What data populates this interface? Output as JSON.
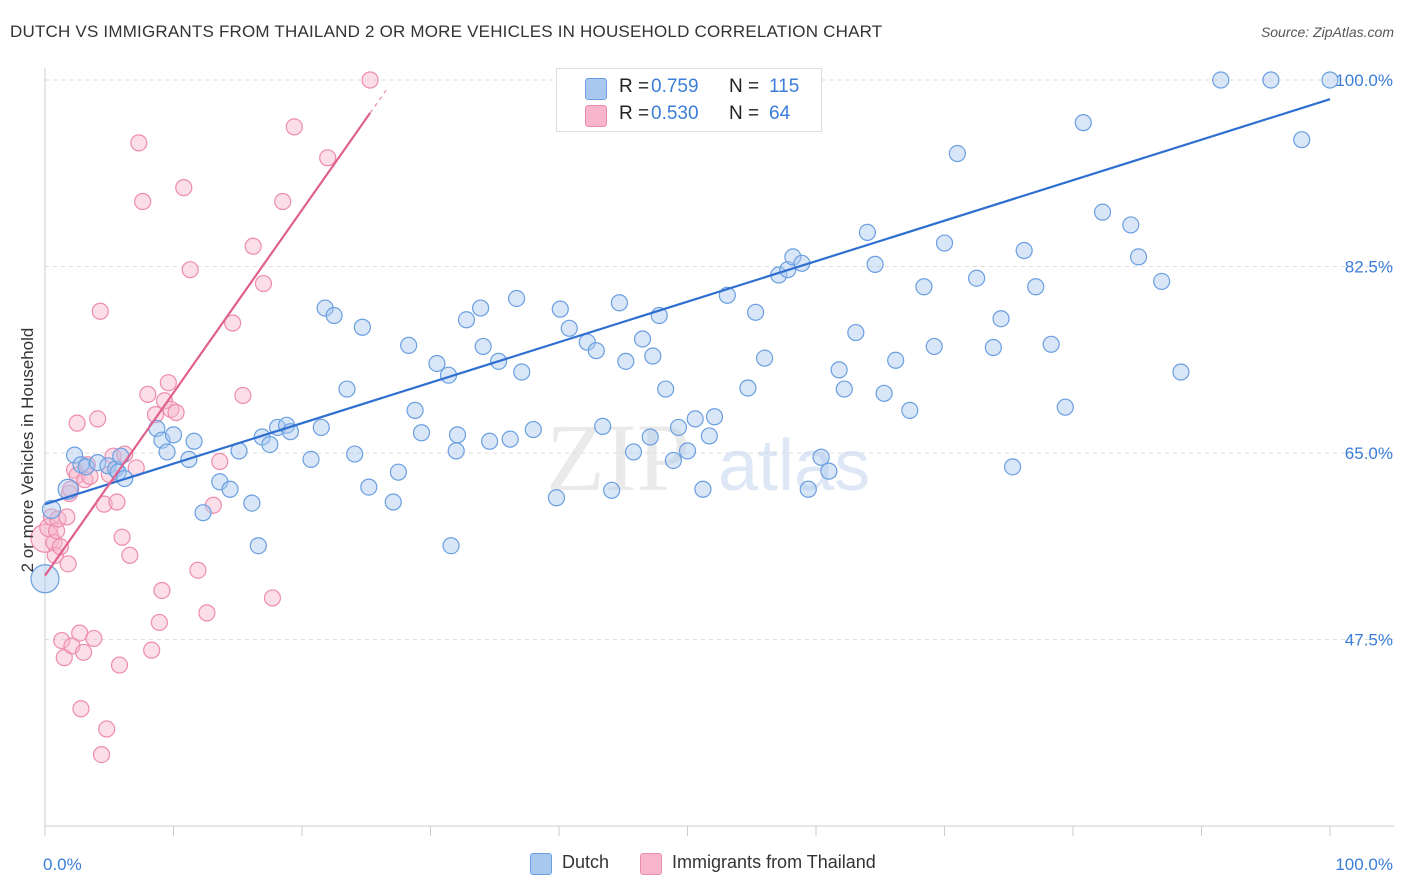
{
  "title": "DUTCH VS IMMIGRANTS FROM THAILAND 2 OR MORE VEHICLES IN HOUSEHOLD CORRELATION CHART",
  "source": "Source: ZipAtlas.com",
  "watermark": {
    "zip": "ZIP",
    "atlas": "atlas"
  },
  "colors": {
    "dutch_fill": "#a9c8f0",
    "dutch_stroke": "#6a9fe0",
    "dutch_line": "#2f6fd0",
    "thai_fill": "#f7b6cb",
    "thai_stroke": "#ee8cac",
    "thai_line": "#e0608e",
    "tick_label": "#3b7dd8",
    "grid": "#dddddd"
  },
  "stats": {
    "dutch": {
      "r_label": "R =",
      "r_value": "0.759",
      "n_label": "N =",
      "n_value": "115"
    },
    "thai": {
      "r_label": "R =",
      "r_value": "0.530",
      "n_label": "N =",
      "n_value": "64"
    }
  },
  "legend": {
    "dutch": "Dutch",
    "thai": "Immigrants from Thailand"
  },
  "chart_data": {
    "type": "scatter",
    "title": "DUTCH VS IMMIGRANTS FROM THAILAND 2 OR MORE VEHICLES IN HOUSEHOLD CORRELATION CHART",
    "xlabel": "",
    "ylabel": "2 or more Vehicles in Household",
    "xlim": [
      0,
      100
    ],
    "ylim": [
      30,
      100
    ],
    "x_tick_labels": [
      "0.0%",
      "100.0%"
    ],
    "y_ticks": [
      47.5,
      65.0,
      82.5,
      100.0
    ],
    "y_tick_labels": [
      "47.5%",
      "65.0%",
      "82.5%",
      "100.0%"
    ],
    "grid": true,
    "legend_position": "bottom",
    "series": [
      {
        "name": "Dutch",
        "trendline": [
          [
            0,
            60.2
          ],
          [
            100,
            98.2
          ]
        ],
        "points": [
          [
            0,
            53.2,
            14
          ],
          [
            0.5,
            59.7,
            9
          ],
          [
            1.8,
            61.6,
            10
          ],
          [
            2.3,
            64.8,
            8
          ],
          [
            2.8,
            63.9,
            8
          ],
          [
            3.2,
            63.7,
            8
          ],
          [
            4.1,
            64.1,
            8
          ],
          [
            4.9,
            63.8,
            8
          ],
          [
            5.5,
            63.5,
            8
          ],
          [
            5.7,
            63.2,
            8
          ],
          [
            5.9,
            64.7,
            8
          ],
          [
            6.2,
            62.6,
            8
          ],
          [
            8.7,
            67.3,
            8
          ],
          [
            9.1,
            66.2,
            8
          ],
          [
            9.5,
            65.1,
            8
          ],
          [
            10.0,
            66.7,
            8
          ],
          [
            11.2,
            64.4,
            8
          ],
          [
            11.6,
            66.1,
            8
          ],
          [
            12.3,
            59.4,
            8
          ],
          [
            13.6,
            62.3,
            8
          ],
          [
            14.4,
            61.6,
            8
          ],
          [
            15.1,
            65.2,
            8
          ],
          [
            16.1,
            60.3,
            8
          ],
          [
            16.6,
            56.3,
            8
          ],
          [
            16.9,
            66.5,
            8
          ],
          [
            17.5,
            65.8,
            8
          ],
          [
            18.1,
            67.4,
            8
          ],
          [
            18.8,
            67.6,
            8
          ],
          [
            19.1,
            67.0,
            8
          ],
          [
            20.7,
            64.4,
            8
          ],
          [
            21.5,
            67.4,
            8
          ],
          [
            21.8,
            78.6,
            8
          ],
          [
            22.5,
            77.9,
            8
          ],
          [
            23.5,
            71.0,
            8
          ],
          [
            24.1,
            64.9,
            8
          ],
          [
            24.7,
            76.8,
            8
          ],
          [
            25.2,
            61.8,
            8
          ],
          [
            27.1,
            60.4,
            8
          ],
          [
            27.5,
            63.2,
            8
          ],
          [
            28.3,
            75.1,
            8
          ],
          [
            28.8,
            69.0,
            8
          ],
          [
            29.3,
            66.9,
            8
          ],
          [
            30.5,
            73.4,
            8
          ],
          [
            31.4,
            72.3,
            8
          ],
          [
            31.6,
            56.3,
            8
          ],
          [
            32.0,
            65.2,
            8
          ],
          [
            32.1,
            66.7,
            8
          ],
          [
            32.8,
            77.5,
            8
          ],
          [
            33.9,
            78.6,
            8
          ],
          [
            34.1,
            75.0,
            8
          ],
          [
            34.6,
            66.1,
            8
          ],
          [
            35.3,
            73.6,
            8
          ],
          [
            36.2,
            66.3,
            8
          ],
          [
            36.7,
            79.5,
            8
          ],
          [
            37.1,
            72.6,
            8
          ],
          [
            38.0,
            67.2,
            8
          ],
          [
            39.8,
            60.8,
            8
          ],
          [
            40.1,
            78.5,
            8
          ],
          [
            40.8,
            76.7,
            8
          ],
          [
            42.2,
            75.4,
            8
          ],
          [
            42.9,
            74.6,
            8
          ],
          [
            43.4,
            67.5,
            8
          ],
          [
            44.1,
            61.5,
            8
          ],
          [
            44.7,
            79.1,
            8
          ],
          [
            45.2,
            73.6,
            8
          ],
          [
            45.8,
            65.1,
            8
          ],
          [
            46.5,
            75.7,
            8
          ],
          [
            47.1,
            66.5,
            8
          ],
          [
            47.3,
            74.1,
            8
          ],
          [
            47.8,
            77.9,
            8
          ],
          [
            48.3,
            71.0,
            8
          ],
          [
            48.9,
            64.3,
            8
          ],
          [
            49.3,
            67.4,
            8
          ],
          [
            50.0,
            65.2,
            8
          ],
          [
            50.6,
            68.2,
            8
          ],
          [
            51.2,
            61.6,
            8
          ],
          [
            51.7,
            66.6,
            8
          ],
          [
            52.1,
            68.4,
            8
          ],
          [
            53.1,
            79.8,
            8
          ],
          [
            54.7,
            71.1,
            8
          ],
          [
            55.3,
            78.2,
            8
          ],
          [
            56.0,
            73.9,
            8
          ],
          [
            57.1,
            81.7,
            8
          ],
          [
            57.8,
            82.2,
            8
          ],
          [
            58.2,
            83.4,
            8
          ],
          [
            58.9,
            82.8,
            8
          ],
          [
            59.4,
            61.6,
            8
          ],
          [
            60.4,
            64.6,
            8
          ],
          [
            61.0,
            63.3,
            8
          ],
          [
            61.8,
            72.8,
            8
          ],
          [
            62.2,
            71.0,
            8
          ],
          [
            63.1,
            76.3,
            8
          ],
          [
            64.0,
            85.7,
            8
          ],
          [
            64.6,
            82.7,
            8
          ],
          [
            65.3,
            70.6,
            8
          ],
          [
            66.2,
            73.7,
            8
          ],
          [
            67.3,
            69.0,
            8
          ],
          [
            68.4,
            80.6,
            8
          ],
          [
            69.2,
            75.0,
            8
          ],
          [
            70.0,
            84.7,
            8
          ],
          [
            71.0,
            93.1,
            8
          ],
          [
            72.5,
            81.4,
            8
          ],
          [
            73.8,
            74.9,
            8
          ],
          [
            74.4,
            77.6,
            8
          ],
          [
            75.3,
            63.7,
            8
          ],
          [
            76.2,
            84.0,
            8
          ],
          [
            77.1,
            80.6,
            8
          ],
          [
            78.3,
            75.2,
            8
          ],
          [
            79.4,
            69.3,
            8
          ],
          [
            80.8,
            96.0,
            8
          ],
          [
            82.3,
            87.6,
            8
          ],
          [
            84.5,
            86.4,
            8
          ],
          [
            85.1,
            83.4,
            8
          ],
          [
            86.9,
            81.1,
            8
          ],
          [
            88.4,
            72.6,
            8
          ],
          [
            91.5,
            100.0,
            8
          ],
          [
            95.4,
            100.0,
            8
          ],
          [
            97.8,
            94.4,
            8
          ],
          [
            100.0,
            100.0,
            8
          ]
        ]
      },
      {
        "name": "Immigrants from Thailand",
        "trendline": [
          [
            0,
            53.5
          ],
          [
            25.3,
            96.9
          ]
        ],
        "points": [
          [
            0,
            57.0,
            14
          ],
          [
            0.3,
            58.0,
            9
          ],
          [
            0.5,
            59.0,
            8
          ],
          [
            0.7,
            56.6,
            8
          ],
          [
            0.8,
            55.4,
            8
          ],
          [
            0.9,
            57.7,
            8
          ],
          [
            1.0,
            58.8,
            8
          ],
          [
            1.2,
            56.2,
            8
          ],
          [
            1.3,
            47.4,
            8
          ],
          [
            1.5,
            45.8,
            8
          ],
          [
            1.7,
            59.0,
            8
          ],
          [
            1.8,
            54.6,
            8
          ],
          [
            1.9,
            61.2,
            8
          ],
          [
            2.0,
            61.6,
            8
          ],
          [
            2.1,
            46.9,
            8
          ],
          [
            2.3,
            63.4,
            8
          ],
          [
            2.5,
            62.9,
            8
          ],
          [
            2.5,
            67.8,
            8
          ],
          [
            2.7,
            48.1,
            8
          ],
          [
            2.8,
            41.0,
            8
          ],
          [
            3.0,
            46.3,
            8
          ],
          [
            3.1,
            62.5,
            8
          ],
          [
            3.3,
            63.9,
            8
          ],
          [
            3.5,
            62.8,
            8
          ],
          [
            3.8,
            47.6,
            8
          ],
          [
            4.1,
            68.2,
            8
          ],
          [
            4.3,
            78.3,
            8
          ],
          [
            4.4,
            36.7,
            8
          ],
          [
            4.6,
            60.2,
            8
          ],
          [
            4.8,
            39.1,
            8
          ],
          [
            5.0,
            63.0,
            8
          ],
          [
            5.3,
            64.7,
            8
          ],
          [
            5.6,
            60.4,
            8
          ],
          [
            5.8,
            45.1,
            8
          ],
          [
            6.0,
            57.1,
            8
          ],
          [
            6.2,
            64.9,
            8
          ],
          [
            6.6,
            55.4,
            8
          ],
          [
            7.1,
            63.6,
            8
          ],
          [
            7.3,
            94.1,
            8
          ],
          [
            7.6,
            88.6,
            8
          ],
          [
            8.0,
            70.5,
            8
          ],
          [
            8.3,
            46.5,
            8
          ],
          [
            8.6,
            68.6,
            8
          ],
          [
            8.9,
            49.1,
            8
          ],
          [
            9.1,
            52.1,
            8
          ],
          [
            9.3,
            69.9,
            8
          ],
          [
            9.6,
            71.6,
            8
          ],
          [
            9.8,
            69.1,
            8
          ],
          [
            10.2,
            68.8,
            8
          ],
          [
            10.8,
            89.9,
            8
          ],
          [
            11.3,
            82.2,
            8
          ],
          [
            11.9,
            54.0,
            8
          ],
          [
            12.6,
            50.0,
            8
          ],
          [
            13.1,
            60.1,
            8
          ],
          [
            13.6,
            64.2,
            8
          ],
          [
            14.6,
            77.2,
            8
          ],
          [
            15.4,
            70.4,
            8
          ],
          [
            16.2,
            84.4,
            8
          ],
          [
            17.0,
            80.9,
            8
          ],
          [
            17.7,
            51.4,
            8
          ],
          [
            18.5,
            88.6,
            8
          ],
          [
            19.4,
            95.6,
            8
          ],
          [
            22.0,
            92.7,
            8
          ],
          [
            25.3,
            100.0,
            8
          ]
        ]
      }
    ]
  }
}
